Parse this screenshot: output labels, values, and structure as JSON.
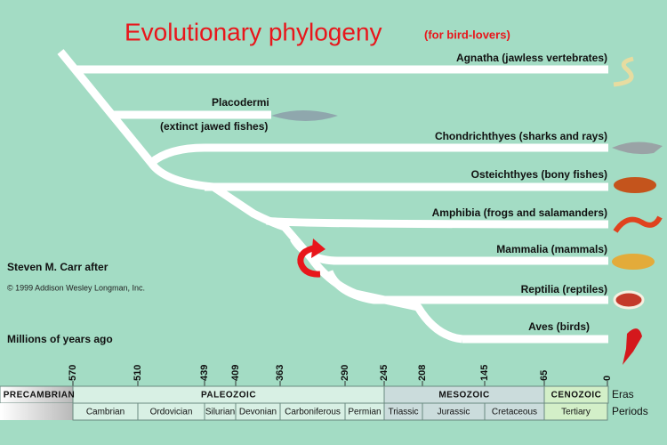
{
  "title": "Evolutionary phylogeny",
  "subtitle": "(for bird-lovers)",
  "credit": "Steven M. Carr after",
  "copyright": "© 1999 Addison Wesley Longman, Inc.",
  "axis_label": "Millions of years ago",
  "taxa": [
    {
      "label": "Agnatha (jawless vertebrates)"
    },
    {
      "label": "Placodermi",
      "note": "(extinct jawed fishes)"
    },
    {
      "label": "Chondrichthyes (sharks and rays)"
    },
    {
      "label": "Osteichthyes (bony fishes)"
    },
    {
      "label": "Amphibia (frogs and salamanders)"
    },
    {
      "label": "Mammalia (mammals)"
    },
    {
      "label": "Reptilia (reptiles)"
    },
    {
      "label": "Aves (birds)"
    }
  ],
  "ticks": [
    570,
    510,
    439,
    409,
    363,
    290,
    245,
    208,
    145,
    65,
    0
  ],
  "eras_label": "Eras",
  "periods_label": "Periods",
  "eras": [
    "PRECAMBRIAN",
    "PALEOZOIC",
    "MESOZOIC",
    "CENOZOIC"
  ],
  "periods": [
    "Cambrian",
    "Ordovician",
    "Silurian",
    "Devonian",
    "Carboniferous",
    "Permian",
    "Triassic",
    "Jurassic",
    "Cretaceous",
    "Tertiary"
  ]
}
